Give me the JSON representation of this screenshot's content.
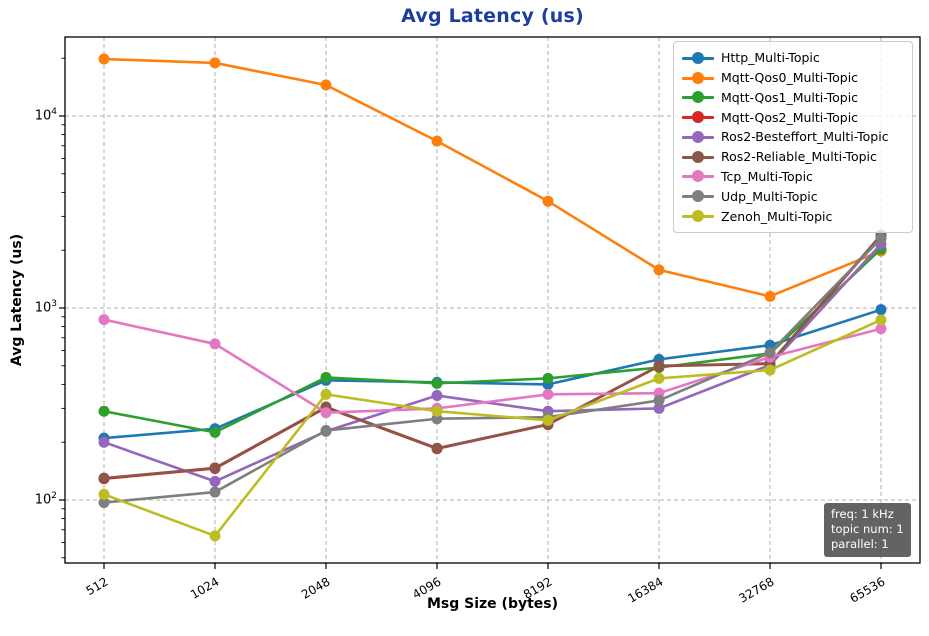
{
  "title": "Avg Latency  (us)",
  "xlabel": "Msg Size (bytes)",
  "ylabel": "Avg Latency (us)",
  "annotation": {
    "lines": [
      "freq: 1 kHz",
      "topic num: 1",
      "parallel: 1"
    ]
  },
  "colors": {
    "title": "#1e3e9e",
    "grid": "#b0b0b0",
    "spine": "#000000",
    "annotation_bg": "#4d4d4d",
    "legend_border": "#cccccc"
  },
  "chart_data": {
    "type": "line",
    "x_scale": "category",
    "y_scale": "log",
    "grid": true,
    "legend_position": "upper right",
    "title": "Avg Latency  (us)",
    "xlabel": "Msg Size (bytes)",
    "ylabel": "Avg Latency (us)",
    "ylim": [
      50,
      25000
    ],
    "categories": [
      "512",
      "1024",
      "2048",
      "4096",
      "8192",
      "16384",
      "32768",
      "65536"
    ],
    "yticks": [
      {
        "base": "10",
        "exp": "2",
        "value": 100
      },
      {
        "base": "10",
        "exp": "3",
        "value": 1000
      },
      {
        "base": "10",
        "exp": "4",
        "value": 10000
      }
    ],
    "series": [
      {
        "name": "Http_Multi-Topic",
        "color": "#1f77b4",
        "values": [
          210,
          235,
          420,
          410,
          400,
          540,
          640,
          980
        ]
      },
      {
        "name": "Mqtt-Qos0_Multi-Topic",
        "color": "#ff7f0e",
        "values": [
          19800,
          18900,
          14500,
          7400,
          3600,
          1580,
          1150,
          1980
        ]
      },
      {
        "name": "Mqtt-Qos1_Multi-Topic",
        "color": "#2ca02c",
        "values": [
          290,
          225,
          435,
          405,
          430,
          490,
          580,
          2030
        ]
      },
      {
        "name": "Mqtt-Qos2_Multi-Topic",
        "color": "#d62728",
        "values": [
          129,
          146,
          303,
          185,
          247,
          498,
          512,
          2380
        ]
      },
      {
        "name": "Ros2-Besteffort_Multi-Topic",
        "color": "#9467bd",
        "values": [
          200,
          125,
          228,
          350,
          290,
          300,
          505,
          2150
        ]
      },
      {
        "name": "Ros2-Reliable_Multi-Topic",
        "color": "#8c564b",
        "values": [
          130,
          147,
          305,
          186,
          248,
          500,
          515,
          2400
        ]
      },
      {
        "name": "Tcp_Multi-Topic",
        "color": "#e377c2",
        "values": [
          870,
          650,
          285,
          300,
          355,
          360,
          555,
          780
        ]
      },
      {
        "name": "Udp_Multi-Topic",
        "color": "#7f7f7f",
        "values": [
          97,
          110,
          230,
          265,
          270,
          330,
          585,
          2300
        ]
      },
      {
        "name": "Zenoh_Multi-Topic",
        "color": "#bcbd22",
        "values": [
          107,
          65,
          355,
          290,
          260,
          430,
          475,
          866
        ]
      }
    ]
  }
}
